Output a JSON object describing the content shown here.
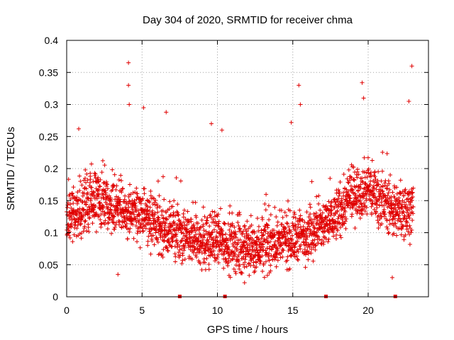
{
  "chart_data": {
    "type": "scatter",
    "title": "Day 304 of 2020, SRMTID for receiver chma",
    "xlabel": "GPS time / hours",
    "ylabel": "SRMTID / TECUs",
    "xlim": [
      0,
      24
    ],
    "ylim": [
      0,
      0.4
    ],
    "xticks": [
      0,
      5,
      10,
      15,
      20
    ],
    "xtick_labels": [
      "0",
      "5",
      "10",
      "15",
      "20"
    ],
    "yticks": [
      0,
      0.05,
      0.1,
      0.15,
      0.2,
      0.25,
      0.3,
      0.35,
      0.4
    ],
    "ytick_labels": [
      "0",
      "0.05",
      "0.1",
      "0.15",
      "0.2",
      "0.25",
      "0.3",
      "0.35",
      "0.4"
    ],
    "grid": true,
    "series": [
      {
        "name": "SRMTID",
        "marker": "plus",
        "color": "#e00000",
        "points_count": 2400,
        "baseline_profile": {
          "x": [
            0,
            1,
            2,
            3,
            4,
            5,
            6,
            7,
            8,
            9,
            10,
            11,
            12,
            13,
            14,
            15,
            16,
            17,
            18,
            19,
            20,
            21,
            22,
            23
          ],
          "y": [
            0.12,
            0.14,
            0.15,
            0.14,
            0.13,
            0.13,
            0.11,
            0.1,
            0.09,
            0.085,
            0.09,
            0.08,
            0.075,
            0.08,
            0.085,
            0.09,
            0.1,
            0.11,
            0.13,
            0.16,
            0.17,
            0.15,
            0.13,
            0.14
          ]
        },
        "highlights": [
          {
            "x": 4.1,
            "y": 0.365
          },
          {
            "x": 4.1,
            "y": 0.33
          },
          {
            "x": 4.15,
            "y": 0.3
          },
          {
            "x": 5.1,
            "y": 0.295
          },
          {
            "x": 6.6,
            "y": 0.288
          },
          {
            "x": 9.6,
            "y": 0.27
          },
          {
            "x": 10.3,
            "y": 0.26
          },
          {
            "x": 14.9,
            "y": 0.272
          },
          {
            "x": 15.4,
            "y": 0.33
          },
          {
            "x": 15.5,
            "y": 0.3
          },
          {
            "x": 19.6,
            "y": 0.334
          },
          {
            "x": 19.7,
            "y": 0.31
          },
          {
            "x": 22.7,
            "y": 0.305
          },
          {
            "x": 22.9,
            "y": 0.36
          },
          {
            "x": 0.8,
            "y": 0.262
          },
          {
            "x": 3.4,
            "y": 0.035
          },
          {
            "x": 11.8,
            "y": 0.022
          },
          {
            "x": 21.6,
            "y": 0.03
          }
        ],
        "gaps_at_zero": [
          7.5,
          10.5,
          17.2,
          21.8
        ]
      }
    ]
  }
}
